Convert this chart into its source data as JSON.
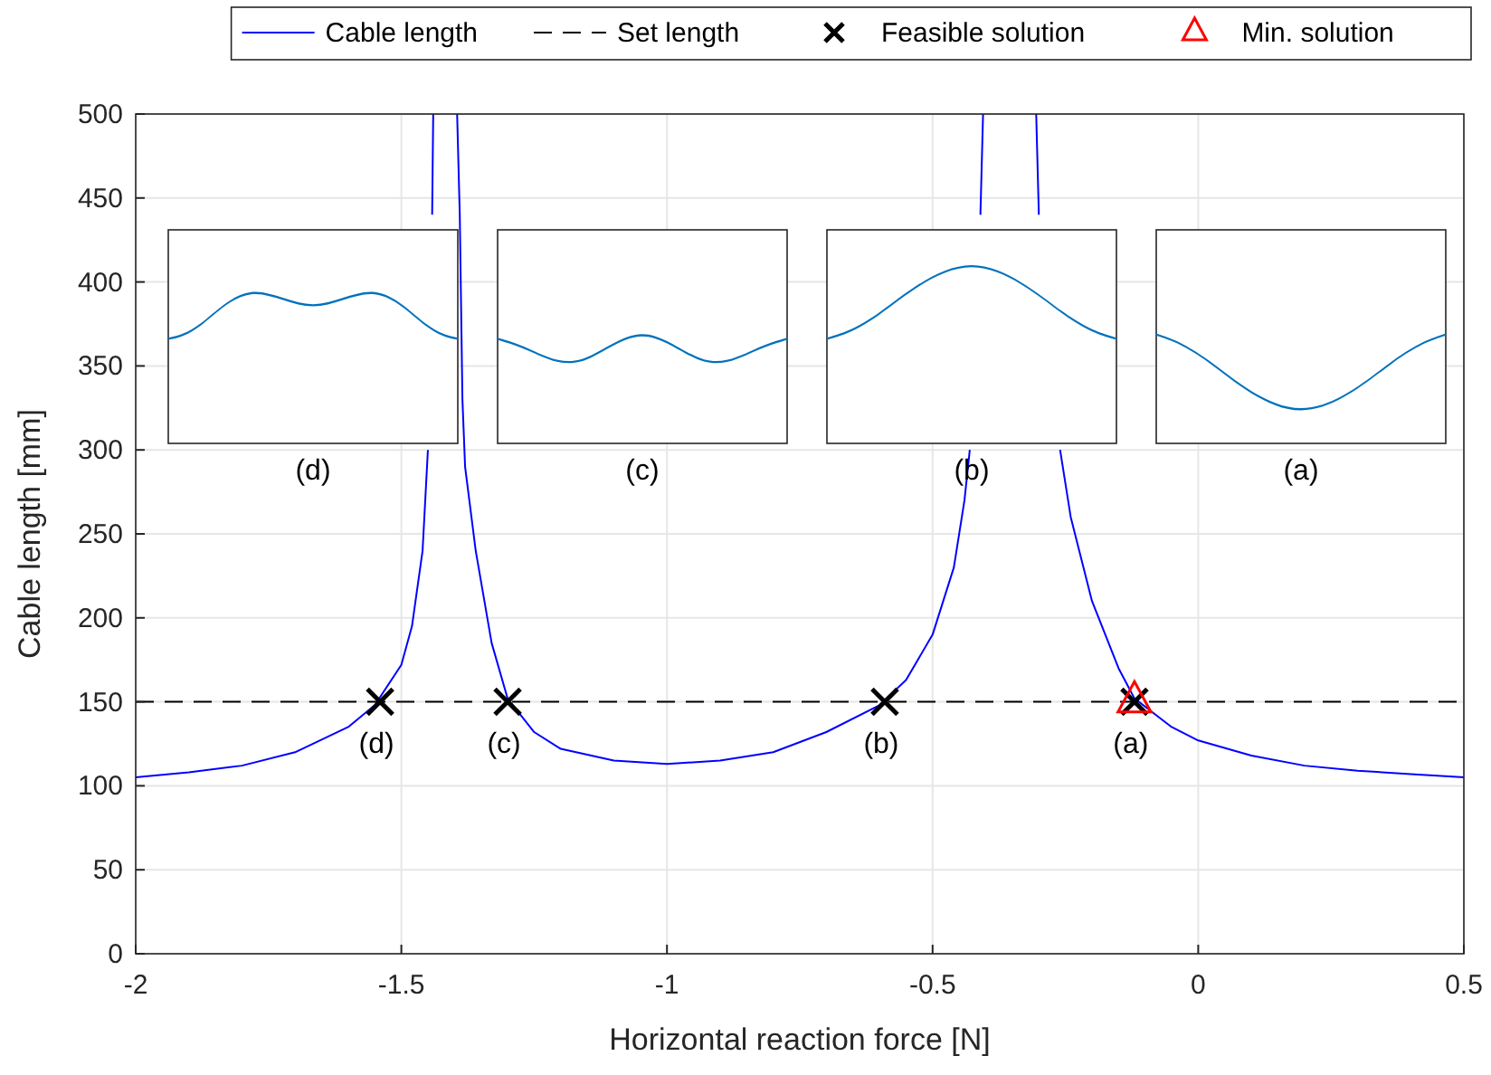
{
  "chart_data": {
    "type": "line",
    "xlabel": "Horizontal reaction force [N]",
    "ylabel": "Cable length [mm]",
    "xlim": [
      -2,
      0.5
    ],
    "xticks": [
      -2,
      -1.5,
      -1,
      -0.5,
      0,
      0.5
    ],
    "ylim": [
      0,
      500
    ],
    "yticks": [
      0,
      50,
      100,
      150,
      200,
      250,
      300,
      350,
      400,
      450,
      500
    ],
    "grid": true,
    "legend": "top",
    "series": [
      {
        "name": "Cable length",
        "color": "#0000ff",
        "line_style": "solid",
        "marker": "none",
        "x": [
          -2,
          -1.9,
          -1.8,
          -1.7,
          -1.6,
          -1.55,
          -1.5,
          -1.48,
          -1.46,
          -1.45,
          -1.445,
          -1.442,
          -1.44,
          -1.42,
          -1.395,
          -1.39,
          -1.385,
          -1.38,
          -1.36,
          -1.33,
          -1.3,
          -1.25,
          -1.2,
          -1.1,
          -1,
          -0.9,
          -0.8,
          -0.7,
          -0.6,
          -0.55,
          -0.5,
          -0.46,
          -0.44,
          -0.43,
          -0.42,
          -0.41,
          -0.405,
          -0.35,
          -0.305,
          -0.3,
          -0.28,
          -0.26,
          -0.24,
          -0.2,
          -0.15,
          -0.12,
          -0.05,
          0,
          0.1,
          0.2,
          0.3,
          0.4,
          0.5
        ],
        "values": [
          105,
          108,
          112,
          120,
          135,
          148,
          172,
          195,
          240,
          300,
          null,
          440,
          500,
          null,
          500,
          440,
          330,
          290,
          240,
          185,
          152,
          132,
          122,
          115,
          113,
          115,
          120,
          132,
          148,
          163,
          190,
          230,
          270,
          300,
          null,
          440,
          500,
          null,
          500,
          440,
          null,
          300,
          260,
          210,
          170,
          152,
          135,
          127,
          118,
          112,
          109,
          107,
          105
        ]
      },
      {
        "name": "Set length",
        "type": "line",
        "color": "#000000",
        "line_style": "dashed",
        "marker": "none",
        "x": [
          -2,
          0.5
        ],
        "values": [
          150,
          150
        ]
      },
      {
        "name": "Feasible solution",
        "type": "scatter",
        "color": "#000000",
        "marker": "cross",
        "x": [
          -1.54,
          -1.3,
          -0.59,
          -0.12
        ],
        "values": [
          150,
          150,
          150,
          150
        ]
      },
      {
        "name": "Min. solution",
        "type": "scatter",
        "color": "#ff0000",
        "marker": "triangle",
        "x": [
          -0.12
        ],
        "values": [
          150
        ]
      }
    ],
    "annotations": [
      {
        "text": "(d)",
        "x": -1.54,
        "y": 150
      },
      {
        "text": "(c)",
        "x": -1.3,
        "y": 150
      },
      {
        "text": "(b)",
        "x": -0.59,
        "y": 150
      },
      {
        "text": "(a)",
        "x": -0.12,
        "y": 150
      },
      "(d)",
      "(c)",
      "(b)",
      "(a)"
    ]
  }
}
